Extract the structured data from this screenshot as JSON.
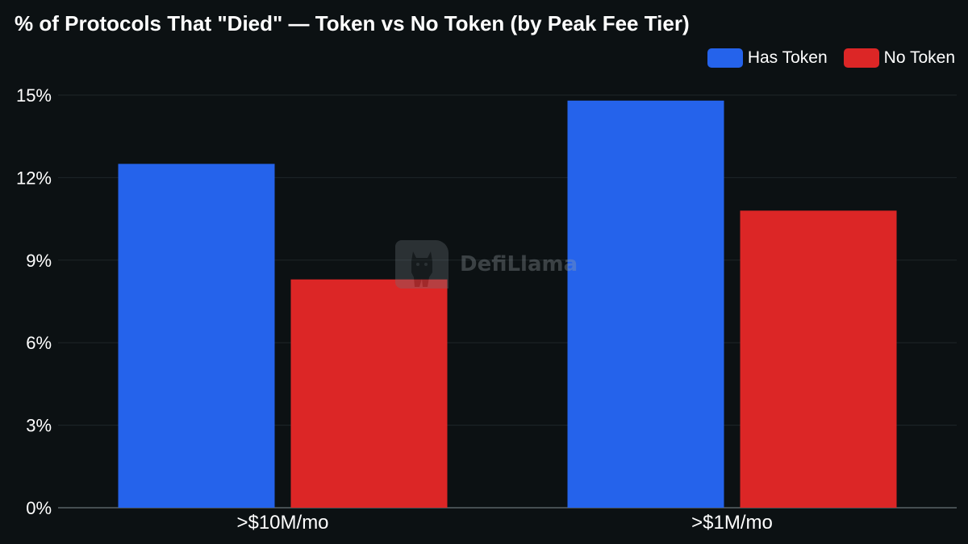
{
  "chart_data": {
    "type": "bar",
    "title": "% of Protocols That \"Died\" — Token vs No Token (by Peak Fee Tier)",
    "categories": [
      ">$10M/mo",
      ">$1M/mo"
    ],
    "series": [
      {
        "name": "Has Token",
        "color": "#2563eb",
        "values": [
          12.5,
          14.8
        ]
      },
      {
        "name": "No Token",
        "color": "#dc2626",
        "values": [
          8.3,
          10.8
        ]
      }
    ],
    "y_ticks": [
      "0%",
      "3%",
      "6%",
      "9%",
      "12%",
      "15%"
    ],
    "ylim": [
      0,
      15
    ],
    "y_unit": "%",
    "grid": true,
    "legend_position": "top-right",
    "xlabel": "",
    "ylabel": ""
  },
  "watermark": {
    "text": "DefiLlama",
    "icon": "llama-logo-icon"
  }
}
